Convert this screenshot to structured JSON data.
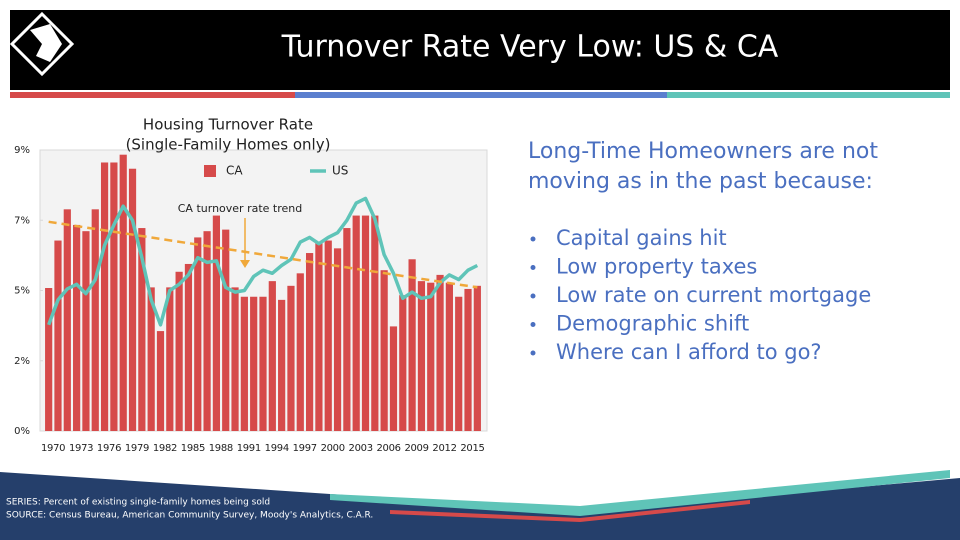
{
  "slide": {
    "title": "Turnover Rate Very Low: US & CA",
    "heading": [
      "Long-Time Homeowners are not",
      "moving as in the past because:"
    ],
    "bullets": [
      "Capital gains hit",
      "Low property taxes",
      "Low rate on current mortgage",
      "Demographic shift",
      "Where can I afford to go?"
    ],
    "footnotes": [
      "SERIES: Percent of existing single-family homes being sold",
      "SOURCE:  Census Bureau, American Community Survey, Moody's Analytics, C.A.R."
    ]
  },
  "chart_data": {
    "type": "bar",
    "title": "Housing Turnover Rate",
    "subtitle": "(Single-Family Homes only)",
    "categories": [
      "1970",
      null,
      null,
      "1973",
      null,
      null,
      "1976",
      null,
      null,
      "1979",
      null,
      null,
      "1982",
      null,
      null,
      "1985",
      null,
      null,
      "1988",
      null,
      null,
      "1991",
      null,
      null,
      "1994",
      null,
      null,
      "1997",
      null,
      null,
      "2000",
      null,
      null,
      "2003",
      null,
      null,
      "2006",
      null,
      null,
      "2009",
      null,
      null,
      "2012",
      null,
      null,
      "2015",
      null
    ],
    "series": [
      {
        "name": "CA",
        "color": "#d64a4a",
        "type": "bar",
        "values": [
          4.58,
          6.1,
          7.1,
          6.6,
          6.4,
          7.1,
          8.6,
          8.6,
          8.85,
          8.4,
          6.5,
          4.6,
          3.2,
          4.6,
          5.1,
          5.35,
          6.2,
          6.4,
          6.9,
          6.45,
          4.6,
          4.3,
          4.3,
          4.3,
          4.8,
          4.2,
          4.65,
          5.05,
          5.7,
          6.05,
          6.1,
          5.85,
          6.5,
          6.9,
          6.9,
          6.9,
          5.15,
          3.35,
          4.35,
          5.5,
          4.8,
          4.75,
          5.0,
          4.75,
          4.3,
          4.55,
          4.65
        ]
      },
      {
        "name": "US",
        "color": "#5fc4b8",
        "type": "line",
        "values": [
          3.4,
          4.2,
          4.55,
          4.7,
          4.4,
          4.85,
          5.95,
          6.6,
          7.2,
          6.75,
          5.55,
          4.2,
          3.4,
          4.5,
          4.7,
          5.0,
          5.55,
          5.4,
          5.45,
          4.6,
          4.45,
          4.5,
          4.95,
          5.15,
          5.05,
          5.3,
          5.5,
          6.05,
          6.2,
          6.0,
          6.2,
          6.35,
          6.75,
          7.3,
          7.45,
          6.8,
          5.65,
          5.05,
          4.25,
          4.45,
          4.25,
          4.3,
          4.75,
          5.0,
          4.85,
          5.15,
          5.3
        ]
      }
    ],
    "trend": {
      "label": "CA turnover rate trend",
      "color": "#f0a83a",
      "start": 6.7,
      "end": 4.6
    },
    "ylim": [
      0,
      9
    ],
    "yticks": [
      {
        "value": 0,
        "label": "0%"
      },
      {
        "value": 2.25,
        "label": "2%"
      },
      {
        "value": 4.5,
        "label": "5%"
      },
      {
        "value": 6.75,
        "label": "7%"
      },
      {
        "value": 9,
        "label": "9%"
      }
    ]
  }
}
